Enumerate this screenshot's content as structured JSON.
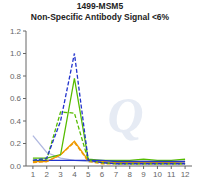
{
  "chart_data": {
    "type": "line",
    "title": "1499-MSM5",
    "subtitle": "Non-Specific Antibody Signal <6%",
    "annotations": [
      "Q"
    ],
    "x": [
      1,
      2,
      3,
      4,
      5,
      6,
      7,
      8,
      9,
      10,
      11,
      12
    ],
    "xlim": [
      0.5,
      12.5
    ],
    "xticks": [
      1,
      2,
      3,
      4,
      5,
      6,
      7,
      8,
      9,
      10,
      11,
      12
    ],
    "ylim": [
      0,
      1.2
    ],
    "yticks": [
      {
        "value": 0,
        "label": "0.0"
      },
      0.2,
      0.4,
      0.6,
      0.8,
      {
        "value": 1.0,
        "label": "1.0"
      },
      1.2
    ],
    "grid": false,
    "series": [
      {
        "color": "#b0b8e0",
        "line_style": "solid",
        "values": [
          0.27,
          0.12,
          0.07,
          0.05,
          0.04,
          0.03,
          0.03,
          0.03,
          0.03,
          0.03,
          0.03,
          0.03
        ]
      },
      {
        "color": "#ee9900",
        "line_style": "solid",
        "values": [
          0.04,
          0.04,
          0.1,
          0.22,
          0.05,
          0.04,
          0.03,
          0.03,
          0.03,
          0.03,
          0.03,
          0.04
        ]
      },
      {
        "color": "#55bb00",
        "line_style": "solid",
        "values": [
          0.07,
          0.07,
          0.1,
          0.78,
          0.06,
          0.05,
          0.05,
          0.05,
          0.06,
          0.05,
          0.05,
          0.06
        ]
      },
      {
        "color": "#2233cc",
        "line_style": "solid",
        "values": [
          0.05,
          0.05,
          0.05,
          0.05,
          0.05,
          0.05,
          0.04,
          0.04,
          0.04,
          0.04,
          0.04,
          0.04
        ]
      },
      {
        "color": "#ee9900",
        "line_style": "dashed",
        "values": [
          0.03,
          0.04,
          0.1,
          0.21,
          0.04,
          0.02,
          0.02,
          0.02,
          0.02,
          0.02,
          0.02,
          0.02
        ]
      },
      {
        "color": "#55bb00",
        "line_style": "dashed",
        "values": [
          0.05,
          0.06,
          0.48,
          0.47,
          0.05,
          0.03,
          0.02,
          0.02,
          0.02,
          0.02,
          0.02,
          0.02
        ]
      },
      {
        "color": "#2233cc",
        "line_style": "dashed",
        "values": [
          0.05,
          0.07,
          0.4,
          1.0,
          0.05,
          0.03,
          0.02,
          0.02,
          0.02,
          0.02,
          0.02,
          0.02
        ]
      }
    ]
  }
}
